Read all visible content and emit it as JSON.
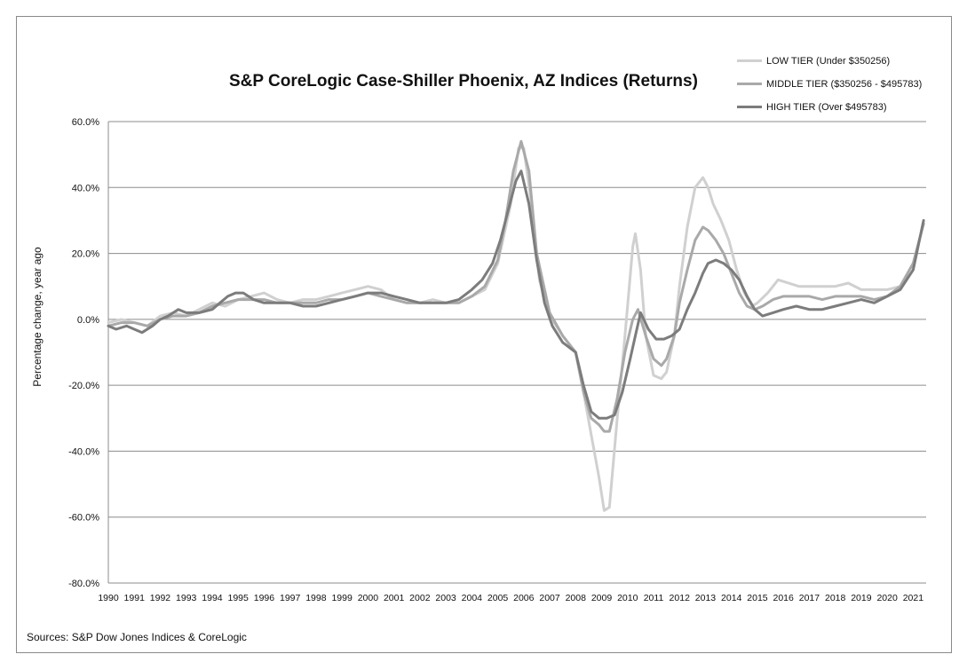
{
  "chart_data": {
    "type": "line",
    "title": "S&P CoreLogic Case-Shiller Phoenix, AZ Indices (Returns)",
    "ylabel": "Percentage change, year ago",
    "xlabel": "",
    "ylim": [
      -80,
      60
    ],
    "xlim": [
      1990,
      2021.5
    ],
    "y_ticks": [
      "60.0%",
      "40.0%",
      "20.0%",
      "0.0%",
      "-20.0%",
      "-40.0%",
      "-60.0%",
      "-80.0%"
    ],
    "y_tick_values": [
      60,
      40,
      20,
      0,
      -20,
      -40,
      -60,
      -80
    ],
    "x_ticks": [
      "1990",
      "1991",
      "1992",
      "1993",
      "1994",
      "1995",
      "1996",
      "1997",
      "1998",
      "1999",
      "2000",
      "2001",
      "2002",
      "2003",
      "2004",
      "2005",
      "2006",
      "2007",
      "2008",
      "2009",
      "2010",
      "2011",
      "2012",
      "2013",
      "2014",
      "2015",
      "2016",
      "2017",
      "2018",
      "2019",
      "2020",
      "2021"
    ],
    "grid": "horizontal",
    "legend_position": "top-right",
    "source": "Sources: S&P Dow Jones Indices & CoreLogic",
    "series": [
      {
        "name": "LOW TIER (Under $350256)",
        "color": "#d0d0d0",
        "x": [
          1990,
          1990.5,
          1991,
          1991.5,
          1992,
          1992.5,
          1993,
          1993.5,
          1994,
          1994.5,
          1995,
          1995.5,
          1996,
          1996.5,
          1997,
          1997.5,
          1998,
          1998.5,
          1999,
          1999.5,
          2000,
          2000.5,
          2001,
          2001.5,
          2002,
          2002.5,
          2003,
          2003.5,
          2004,
          2004.5,
          2005,
          2005.5,
          2005.8,
          2006,
          2006.3,
          2006.6,
          2007,
          2007.5,
          2008,
          2008.3,
          2008.6,
          2008.9,
          2009.1,
          2009.3,
          2009.6,
          2009.9,
          2010.2,
          2010.3,
          2010.5,
          2010.7,
          2011,
          2011.3,
          2011.5,
          2011.8,
          2012,
          2012.3,
          2012.6,
          2012.9,
          2013.1,
          2013.3,
          2013.6,
          2013.9,
          2014.2,
          2014.5,
          2014.8,
          2015,
          2015.4,
          2015.8,
          2016.2,
          2016.6,
          2017,
          2017.5,
          2018,
          2018.5,
          2019,
          2019.5,
          2020,
          2020.5,
          2021,
          2021.4
        ],
        "values": [
          -1,
          0,
          -1,
          -2,
          1,
          2,
          1,
          3,
          5,
          4,
          6,
          7,
          8,
          6,
          5,
          6,
          6,
          7,
          8,
          9,
          10,
          9,
          6,
          5,
          5,
          6,
          5,
          5,
          7,
          9,
          17,
          35,
          52,
          52,
          35,
          12,
          1,
          -5,
          -10,
          -22,
          -35,
          -48,
          -58,
          -57,
          -30,
          -5,
          22,
          26,
          15,
          -5,
          -17,
          -18,
          -16,
          -5,
          10,
          28,
          40,
          43,
          40,
          35,
          30,
          24,
          15,
          8,
          4,
          5,
          8,
          12,
          11,
          10,
          10,
          10,
          10,
          11,
          9,
          9,
          9,
          10,
          17,
          29
        ]
      },
      {
        "name": "MIDDLE TIER ($350256 - $495783)",
        "color": "#a9a9a9",
        "x": [
          1990,
          1990.5,
          1991,
          1991.5,
          1992,
          1992.5,
          1993,
          1993.5,
          1994,
          1994.5,
          1995,
          1995.5,
          1996,
          1996.5,
          1997,
          1997.5,
          1998,
          1998.5,
          1999,
          1999.5,
          2000,
          2000.5,
          2001,
          2001.5,
          2002,
          2002.5,
          2003,
          2003.5,
          2004,
          2004.5,
          2005,
          2005.3,
          2005.6,
          2005.9,
          2006.2,
          2006.5,
          2007,
          2007.5,
          2008,
          2008.3,
          2008.6,
          2008.9,
          2009.1,
          2009.3,
          2009.6,
          2009.9,
          2010.2,
          2010.4,
          2010.7,
          2011,
          2011.3,
          2011.5,
          2011.8,
          2012,
          2012.3,
          2012.6,
          2012.9,
          2013.1,
          2013.4,
          2013.7,
          2014,
          2014.3,
          2014.6,
          2014.9,
          2015.2,
          2015.6,
          2016,
          2016.5,
          2017,
          2017.5,
          2018,
          2018.5,
          2019,
          2019.5,
          2020,
          2020.5,
          2021,
          2021.4
        ],
        "values": [
          -2,
          -1,
          -1,
          -2,
          0,
          1,
          1,
          2,
          4,
          5,
          6,
          6,
          6,
          5,
          5,
          5,
          5,
          6,
          6,
          7,
          8,
          7,
          6,
          5,
          5,
          5,
          5,
          5,
          7,
          10,
          18,
          30,
          45,
          54,
          45,
          20,
          2,
          -5,
          -10,
          -22,
          -30,
          -32,
          -34,
          -34,
          -24,
          -10,
          0,
          3,
          -5,
          -12,
          -14,
          -12,
          -5,
          5,
          15,
          24,
          28,
          27,
          24,
          20,
          14,
          8,
          4,
          3,
          4,
          6,
          7,
          7,
          7,
          6,
          7,
          7,
          7,
          6,
          7,
          10,
          17,
          29
        ]
      },
      {
        "name": "HIGH TIER (Over $495783)",
        "color": "#7c7c7c",
        "x": [
          1990,
          1990.3,
          1990.7,
          1991,
          1991.3,
          1991.7,
          1992,
          1992.3,
          1992.5,
          1992.7,
          1993,
          1993.5,
          1994,
          1994.3,
          1994.6,
          1994.9,
          1995.2,
          1995.6,
          1996,
          1996.5,
          1997,
          1997.5,
          1998,
          1998.5,
          1999,
          1999.5,
          2000,
          2000.5,
          2001,
          2001.5,
          2002,
          2002.5,
          2003,
          2003.5,
          2004,
          2004.4,
          2004.8,
          2005.1,
          2005.4,
          2005.7,
          2005.9,
          2006.2,
          2006.5,
          2006.8,
          2007.1,
          2007.5,
          2008,
          2008.3,
          2008.6,
          2008.9,
          2009.2,
          2009.5,
          2009.8,
          2010.1,
          2010.3,
          2010.5,
          2010.8,
          2011.1,
          2011.4,
          2011.7,
          2012,
          2012.3,
          2012.6,
          2012.9,
          2013.1,
          2013.4,
          2013.7,
          2014,
          2014.3,
          2014.6,
          2014.9,
          2015.2,
          2015.6,
          2016,
          2016.5,
          2017,
          2017.5,
          2018,
          2018.5,
          2019,
          2019.5,
          2020,
          2020.5,
          2021,
          2021.4
        ],
        "values": [
          -2,
          -3,
          -2,
          -3,
          -4,
          -2,
          0,
          1,
          2,
          3,
          2,
          2,
          3,
          5,
          7,
          8,
          8,
          6,
          5,
          5,
          5,
          4,
          4,
          5,
          6,
          7,
          8,
          8,
          7,
          6,
          5,
          5,
          5,
          6,
          9,
          12,
          17,
          24,
          33,
          42,
          45,
          35,
          18,
          5,
          -2,
          -7,
          -10,
          -20,
          -28,
          -30,
          -30,
          -29,
          -22,
          -12,
          -5,
          2,
          -3,
          -6,
          -6,
          -5,
          -3,
          3,
          8,
          14,
          17,
          18,
          17,
          15,
          12,
          7,
          3,
          1,
          2,
          3,
          4,
          3,
          3,
          4,
          5,
          6,
          5,
          7,
          9,
          15,
          30
        ]
      }
    ]
  }
}
